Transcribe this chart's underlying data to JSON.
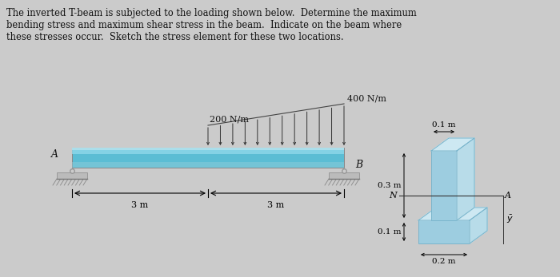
{
  "title_text": "The inverted T-beam is subjected to the loading shown below.  Determine the maximum\nbending stress and maximum shear stress in the beam.  Indicate on the beam where\nthese stresses occur.  Sketch the stress element for these two locations.",
  "bg_color": "#cbcbcb",
  "beam_face_color": "#5bbdd4",
  "beam_top_highlight": "#8fd8ea",
  "beam_bottom_strip": "#a8d8e8",
  "span_left": "3 m",
  "span_right": "3 m",
  "label_A": "A",
  "label_B": "B",
  "label_200": "200 N/m",
  "label_400": "400 N/m",
  "xsec_01m_top": "0.1 m",
  "xsec_03m": "0.3 m",
  "xsec_01m_bot": "0.1 m",
  "xsec_02m": "0.2 m",
  "xsec_label_N": "N",
  "xsec_label_A": "A",
  "xsec_label_ybar": "$\\bar{y}$",
  "face_color": "#9dcde0",
  "side_color": "#b8dce9",
  "top_color": "#cde8f2",
  "edge_color": "#7ab5cc"
}
